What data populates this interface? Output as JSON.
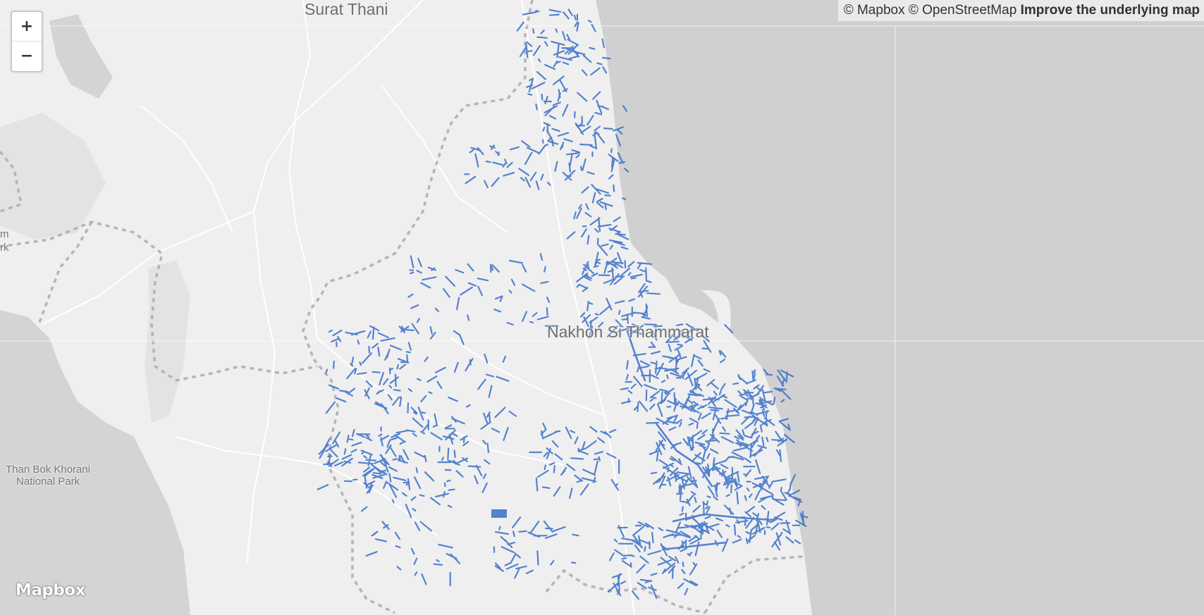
{
  "map": {
    "places": {
      "surat_thani": "Surat Thani",
      "nakhon": "Nakhon Si Thammarat",
      "park_line1": "Than Bok Khorani",
      "park_line2": "National Park",
      "edge_1": "m",
      "edge_2": "rk"
    },
    "colors": {
      "land": "#efefef",
      "water": "#d0d0d0",
      "roads": "#ffffff",
      "boundaries": "#b3b3b3",
      "data_lines": "#3a6fc8"
    }
  },
  "controls": {
    "zoom_in": "+",
    "zoom_out": "−"
  },
  "attribution": {
    "mapbox": "© Mapbox",
    "osm": "© OpenStreetMap",
    "improve": "Improve the underlying map"
  },
  "logo": "Mapbox"
}
